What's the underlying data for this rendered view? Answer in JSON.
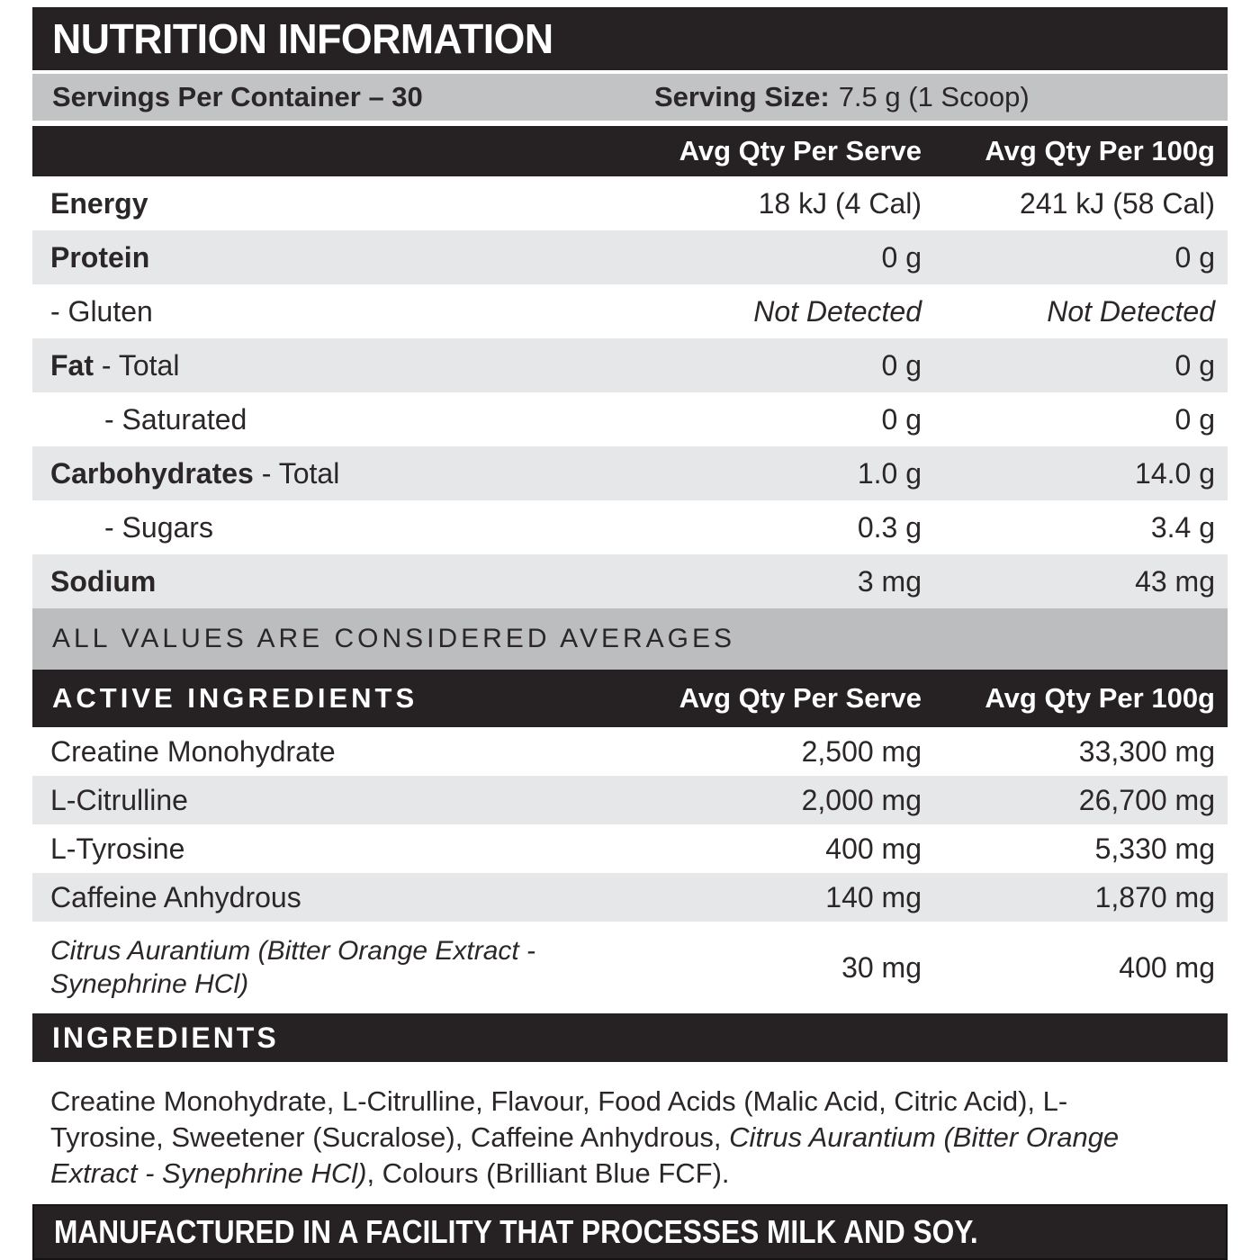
{
  "colors": {
    "band_black": "#262223",
    "silver_bar": "#c2c3c5",
    "note_bar": "#bcbdbf",
    "row_stripe": "#e6e7e8",
    "text": "#2b2728"
  },
  "header": {
    "title": "NUTRITION INFORMATION"
  },
  "serving": {
    "per_container": "Servings Per Container – 30",
    "size_label": "Serving Size:",
    "size_value": "7.5 g (1 Scoop)"
  },
  "columns": {
    "serve": "Avg Qty Per Serve",
    "per100": "Avg Qty Per 100g"
  },
  "nutrition": {
    "rows": [
      {
        "name_bold": "Energy",
        "name_rest": "",
        "serve": "18 kJ (4 Cal)",
        "per100": "241 kJ (58 Cal)"
      },
      {
        "name_bold": "Protein",
        "name_rest": "",
        "serve": "0 g",
        "per100": "0 g"
      },
      {
        "name_bold": "",
        "name_rest": "- Gluten",
        "serve": "Not Detected",
        "per100": "Not Detected"
      },
      {
        "name_bold": "Fat",
        "name_rest": " - Total",
        "serve": "0 g",
        "per100": "0 g"
      },
      {
        "name_bold": "",
        "name_rest": "- Saturated",
        "serve": "0 g",
        "per100": "0 g"
      },
      {
        "name_bold": "Carbohydrates",
        "name_rest": " - Total",
        "serve": "1.0 g",
        "per100": "14.0 g"
      },
      {
        "name_bold": "",
        "name_rest": "- Sugars",
        "serve": "0.3 g",
        "per100": "3.4 g"
      },
      {
        "name_bold": "Sodium",
        "name_rest": "",
        "serve": "3 mg",
        "per100": "43 mg"
      }
    ],
    "note": "ALL VALUES ARE CONSIDERED AVERAGES"
  },
  "active": {
    "title": "ACTIVE INGREDIENTS",
    "rows": [
      {
        "name": "Creatine Monohydrate",
        "serve": "2,500 mg",
        "per100": "33,300 mg"
      },
      {
        "name": "L-Citrulline",
        "serve": "2,000 mg",
        "per100": "26,700 mg"
      },
      {
        "name": "L-Tyrosine",
        "serve": "400 mg",
        "per100": "5,330 mg"
      },
      {
        "name": "Caffeine Anhydrous",
        "serve": "140 mg",
        "per100": "1,870 mg"
      },
      {
        "name": "Citrus Aurantium (Bitter Orange Extract - Synephrine HCl)",
        "serve": "30 mg",
        "per100": "400 mg"
      }
    ]
  },
  "ingredients": {
    "title": "INGREDIENTS",
    "text_before": "Creatine Monohydrate, L-Citrulline, Flavour, Food Acids (Malic Acid, Citric Acid), L-Tyrosine, Sweetener (Sucralose), Caffeine Anhydrous, ",
    "text_italic": "Citrus Aurantium (Bitter Orange Extract - Synephrine HCl)",
    "text_after": ", Colours (Brilliant Blue FCF)."
  },
  "footer": {
    "warning": "MANUFACTURED IN A FACILITY THAT PROCESSES MILK AND SOY."
  }
}
